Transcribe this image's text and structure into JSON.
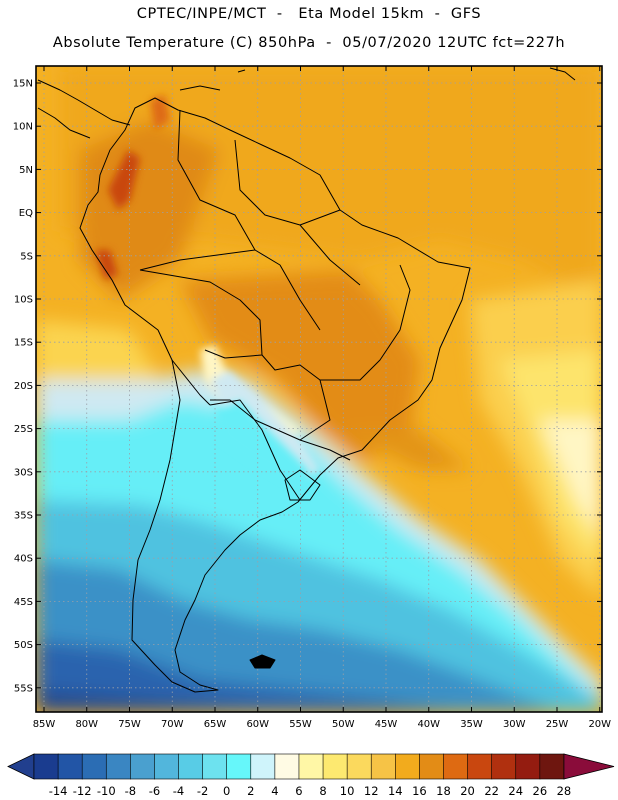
{
  "title_line1": "CPTEC/INPE/MCT  -   Eta Model 15km  -  GFS",
  "title_line2": "Absolute Temperature (C) 850hPa  -  05/07/2020 12UTC fct=227h",
  "lat_labels": [
    "15N",
    "10N",
    "5N",
    "EQ",
    "5S",
    "10S",
    "15S",
    "20S",
    "25S",
    "30S",
    "35S",
    "40S",
    "45S",
    "50S",
    "55S"
  ],
  "lon_labels": [
    "85W",
    "80W",
    "75W",
    "70W",
    "65W",
    "60W",
    "55W",
    "50W",
    "45W",
    "40W",
    "35W",
    "30W",
    "25W",
    "20W"
  ],
  "colorbar": {
    "ticks": [
      "-14",
      "-12",
      "-10",
      "-8",
      "-6",
      "-4",
      "-2",
      "0",
      "2",
      "4",
      "6",
      "8",
      "10",
      "12",
      "14",
      "16",
      "18",
      "20",
      "22",
      "24",
      "26",
      "28"
    ],
    "colors": [
      "#1a3c8f",
      "#2255a6",
      "#2b6db4",
      "#3a86c2",
      "#4aa0cf",
      "#52b6dc",
      "#58cce6",
      "#6de2ef",
      "#66f7fa",
      "#cff4fb",
      "#fffbe4",
      "#fff7a6",
      "#fde970",
      "#fbd95d",
      "#f6c346",
      "#f2ab1d",
      "#e38c16",
      "#de6a12",
      "#c9470f",
      "#b0300f",
      "#941c10",
      "#6e160f",
      "#8a0c3a"
    ],
    "under_color": "#213f8e",
    "over_color": "#8a0c3a"
  }
}
